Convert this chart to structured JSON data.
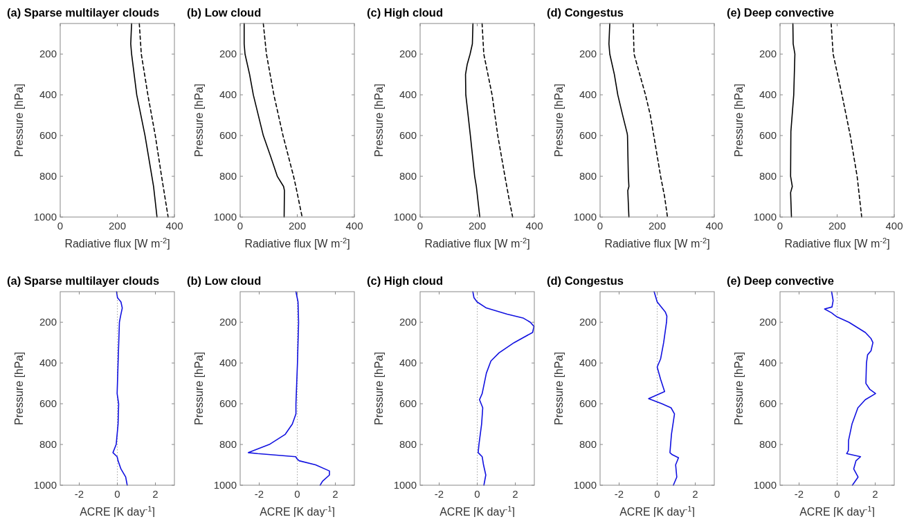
{
  "chart_data": [
    {
      "type": "line",
      "title": "(a) Sparse multilayer clouds",
      "xlabel": "Radiative flux [W m$^{-2}$]",
      "ylabel": "Pressure [hPa]",
      "xlim": [
        0,
        400
      ],
      "xticks": [
        0,
        200,
        400
      ],
      "ylim": [
        1000,
        50
      ],
      "yticks": [
        200,
        400,
        600,
        800,
        1000
      ],
      "series": [
        {
          "color": "#000000",
          "line_style": "solid",
          "x": [
            250,
            247,
            250,
            268,
            297,
            321,
            327,
            331,
            339
          ],
          "values": [
            50,
            150,
            200,
            400,
            600,
            800,
            850,
            900,
            1000
          ]
        },
        {
          "color": "#000000",
          "line_style": "dashed",
          "x": [
            277,
            284,
            307,
            333,
            355,
            378
          ],
          "values": [
            50,
            200,
            400,
            600,
            800,
            1000
          ]
        }
      ]
    },
    {
      "type": "line",
      "title": "(b) Low cloud",
      "xlabel": "Radiative flux [W m$^{-2}$]",
      "ylabel": "Pressure [hPa]",
      "xlim": [
        0,
        400
      ],
      "xticks": [
        0,
        200,
        400
      ],
      "ylim": [
        1000,
        50
      ],
      "yticks": [
        200,
        400,
        600,
        800,
        1000
      ],
      "series": [
        {
          "color": "#000000",
          "line_style": "solid",
          "x": [
            14,
            14,
            17,
            33,
            46,
            81,
            106,
            130,
            152,
            155,
            154
          ],
          "values": [
            50,
            150,
            200,
            300,
            400,
            600,
            700,
            800,
            850,
            870,
            1000
          ]
        },
        {
          "color": "#000000",
          "line_style": "dashed",
          "x": [
            81,
            92,
            118,
            150,
            187,
            195,
            217
          ],
          "values": [
            50,
            200,
            400,
            600,
            800,
            850,
            1000
          ]
        }
      ]
    },
    {
      "type": "line",
      "title": "(c) High cloud",
      "xlabel": "Radiative flux [W m$^{-2}$]",
      "ylabel": "Pressure [hPa]",
      "xlim": [
        0,
        400
      ],
      "xticks": [
        0,
        200,
        400
      ],
      "ylim": [
        1000,
        50
      ],
      "yticks": [
        200,
        400,
        600,
        800,
        1000
      ],
      "series": [
        {
          "color": "#000000",
          "line_style": "solid",
          "x": [
            185,
            183,
            175,
            165,
            159,
            160,
            176,
            191,
            197,
            209
          ],
          "values": [
            50,
            150,
            200,
            250,
            300,
            400,
            600,
            800,
            850,
            1000
          ]
        },
        {
          "color": "#000000",
          "line_style": "dashed",
          "x": [
            217,
            223,
            252,
            272,
            297,
            310,
            324
          ],
          "values": [
            50,
            200,
            400,
            600,
            800,
            900,
            1000
          ]
        }
      ]
    },
    {
      "type": "line",
      "title": "(d) Congestus",
      "xlabel": "Radiative flux [W m$^{-2}$]",
      "ylabel": "Pressure [hPa]",
      "xlim": [
        0,
        400
      ],
      "xticks": [
        0,
        200,
        400
      ],
      "ylim": [
        1000,
        50
      ],
      "yticks": [
        200,
        400,
        600,
        800,
        1000
      ],
      "series": [
        {
          "color": "#000000",
          "line_style": "solid",
          "x": [
            34,
            31,
            34,
            50,
            62,
            79,
            95,
            96,
            99,
            101,
            97,
            101
          ],
          "values": [
            50,
            150,
            200,
            300,
            400,
            500,
            590,
            600,
            800,
            850,
            870,
            1000
          ]
        },
        {
          "color": "#000000",
          "line_style": "dashed",
          "x": [
            116,
            119,
            159,
            176,
            188,
            212,
            226,
            236
          ],
          "values": [
            50,
            200,
            400,
            500,
            600,
            800,
            900,
            1000
          ]
        }
      ]
    },
    {
      "type": "line",
      "title": "(e) Deep convective",
      "xlabel": "Radiative flux [W m$^{-2}$]",
      "ylabel": "Pressure [hPa]",
      "xlim": [
        0,
        400
      ],
      "xticks": [
        0,
        200,
        400
      ],
      "ylim": [
        1000,
        50
      ],
      "yticks": [
        200,
        400,
        600,
        800,
        1000
      ],
      "series": [
        {
          "color": "#000000",
          "line_style": "solid",
          "x": [
            45,
            46,
            52,
            48,
            38,
            37,
            43,
            37,
            40
          ],
          "values": [
            50,
            150,
            200,
            400,
            580,
            800,
            850,
            880,
            1000
          ]
        },
        {
          "color": "#000000",
          "line_style": "dashed",
          "x": [
            179,
            186,
            217,
            246,
            270,
            286
          ],
          "values": [
            50,
            200,
            400,
            600,
            800,
            1000
          ]
        }
      ]
    },
    {
      "type": "line",
      "title": "(a) Sparse multilayer clouds",
      "xlabel": "ACRE [K day$^{-1}$]",
      "ylabel": "Pressure [hPa]",
      "xlim": [
        -3,
        3
      ],
      "xticks": [
        -2,
        0,
        2
      ],
      "ylim": [
        1000,
        50
      ],
      "yticks": [
        200,
        400,
        600,
        800,
        1000
      ],
      "ref_lines": [
        {
          "axis": "x",
          "value": 0,
          "color": "#888888",
          "line_style": "dotted"
        }
      ],
      "series": [
        {
          "color": "#1010e0",
          "line_style": "solid",
          "x": [
            -0.04,
            0.01,
            0.19,
            0.26,
            0.17,
            0.11,
            0.04,
            -0.01,
            0.07,
            0.04,
            -0.06,
            -0.23,
            -0.01,
            0.04,
            0.19,
            0.44,
            0.52
          ],
          "values": [
            50,
            80,
            100,
            130,
            170,
            200,
            400,
            550,
            600,
            700,
            800,
            840,
            860,
            880,
            920,
            960,
            1000
          ]
        }
      ]
    },
    {
      "type": "line",
      "title": "(b) Low cloud",
      "xlabel": "ACRE [K day$^{-1}$]",
      "ylabel": "Pressure [hPa]",
      "xlim": [
        -3,
        3
      ],
      "xticks": [
        -2,
        0,
        2
      ],
      "ylim": [
        1000,
        50
      ],
      "yticks": [
        200,
        400,
        600,
        800,
        1000
      ],
      "ref_lines": [
        {
          "axis": "x",
          "value": 0,
          "color": "#888888",
          "line_style": "dotted"
        }
      ],
      "series": [
        {
          "color": "#1010e0",
          "line_style": "solid",
          "x": [
            -0.07,
            0.04,
            0.07,
            0.01,
            -0.07,
            -0.07,
            -0.26,
            -0.63,
            -1.47,
            -2.57,
            -2.08,
            -0.08,
            -0.02,
            0.1,
            0.96,
            1.69,
            1.69,
            1.33,
            1.2
          ],
          "values": [
            50,
            100,
            200,
            400,
            600,
            650,
            700,
            750,
            800,
            840,
            845,
            860,
            870,
            880,
            900,
            930,
            950,
            980,
            1000
          ]
        }
      ]
    },
    {
      "type": "line",
      "title": "(c) High cloud",
      "xlabel": "ACRE [K day$^{-1}$]",
      "ylabel": "Pressure [hPa]",
      "xlim": [
        -3,
        3
      ],
      "xticks": [
        -2,
        0,
        2
      ],
      "ylim": [
        1000,
        50
      ],
      "yticks": [
        200,
        400,
        600,
        800,
        1000
      ],
      "ref_lines": [
        {
          "axis": "x",
          "value": 0,
          "color": "#888888",
          "line_style": "dotted"
        }
      ],
      "series": [
        {
          "color": "#1010e0",
          "line_style": "solid",
          "x": [
            -0.23,
            -0.17,
            -0.01,
            0.48,
            1.57,
            2.43,
            2.79,
            2.98,
            2.91,
            1.94,
            1.15,
            0.72,
            0.48,
            0.26,
            0.12,
            0.29,
            0.23,
            0.09,
            0.05,
            0.26,
            0.33,
            0.45,
            0.35
          ],
          "values": [
            50,
            80,
            100,
            130,
            160,
            180,
            200,
            220,
            250,
            300,
            350,
            390,
            450,
            550,
            580,
            620,
            700,
            800,
            840,
            860,
            900,
            950,
            1000
          ]
        }
      ]
    },
    {
      "type": "line",
      "title": "(d) Congestus",
      "xlabel": "ACRE [K day$^{-1}$]",
      "ylabel": "Pressure [hPa]",
      "xlim": [
        -3,
        3
      ],
      "xticks": [
        -2,
        0,
        2
      ],
      "ylim": [
        1000,
        50
      ],
      "yticks": [
        200,
        400,
        600,
        800,
        1000
      ],
      "ref_lines": [
        {
          "axis": "x",
          "value": 0,
          "color": "#888888",
          "line_style": "dotted"
        }
      ],
      "series": [
        {
          "color": "#1010e0",
          "line_style": "solid",
          "x": [
            -0.16,
            0,
            0.43,
            0.51,
            0.49,
            0.34,
            0.24,
            0.18,
            0,
            0.18,
            0.39,
            -0.45,
            0.24,
            0.73,
            0.91,
            0.75,
            0.67,
            0.79,
            1.12,
            0.97,
            1.03,
            0.85
          ],
          "values": [
            50,
            100,
            150,
            170,
            200,
            300,
            350,
            380,
            420,
            480,
            540,
            575,
            600,
            620,
            650,
            750,
            840,
            850,
            865,
            900,
            960,
            1000
          ]
        }
      ]
    },
    {
      "type": "line",
      "title": "(e) Deep convective",
      "xlabel": "ACRE [K day$^{-1}$]",
      "ylabel": "Pressure [hPa]",
      "xlim": [
        -3,
        3
      ],
      "xticks": [
        -2,
        0,
        2
      ],
      "ylim": [
        1000,
        50
      ],
      "yticks": [
        200,
        400,
        600,
        800,
        1000
      ],
      "ref_lines": [
        {
          "axis": "x",
          "value": 0,
          "color": "#888888",
          "line_style": "dotted"
        }
      ],
      "series": [
        {
          "color": "#1010e0",
          "line_style": "solid",
          "x": [
            -0.29,
            -0.21,
            -0.27,
            -0.66,
            -0.29,
            -0.15,
            0,
            0.62,
            1.48,
            1.78,
            1.88,
            1.78,
            1.6,
            1.54,
            1.51,
            1.72,
            2.02,
            1.48,
            1.09,
            0.78,
            0.6,
            0.59,
            0.5,
            1.23,
            0.99,
            0.87,
            1.1,
            0.8
          ],
          "values": [
            50,
            94,
            125,
            135,
            154,
            164,
            174,
            200,
            250,
            280,
            300,
            340,
            360,
            400,
            500,
            530,
            550,
            580,
            620,
            700,
            780,
            830,
            845,
            860,
            880,
            920,
            960,
            1000
          ]
        }
      ]
    }
  ]
}
